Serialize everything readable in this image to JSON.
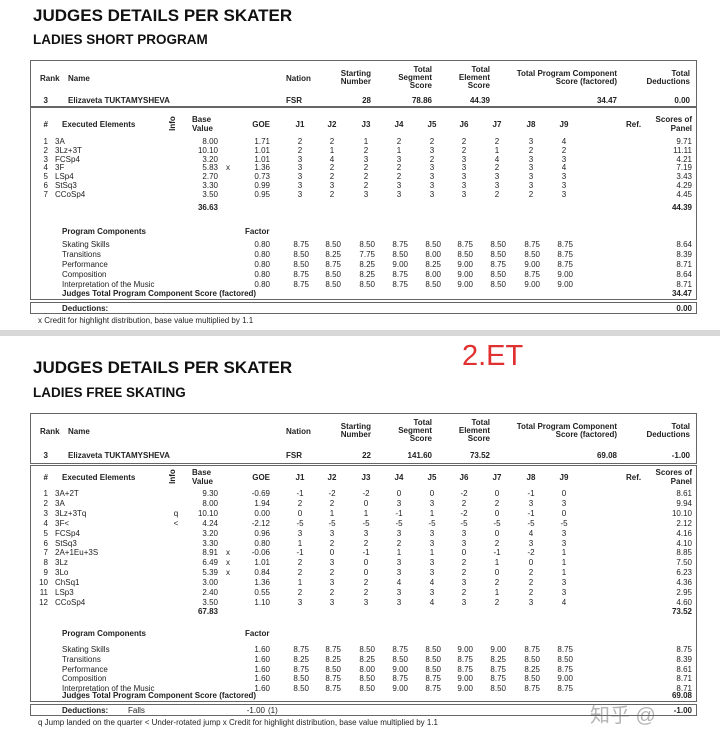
{
  "sheets": [
    {
      "title": "JUDGES DETAILS PER SKATER",
      "subtitle": "LADIES SHORT PROGRAM",
      "badge": "",
      "header": {
        "rank": "Rank",
        "name": "Name",
        "nation": "Nation",
        "start1": "Starting",
        "start2": "Number",
        "tss1": "Total",
        "tss2": "Segment",
        "tss3": "Score",
        "tes1": "Total",
        "tes2": "Element",
        "tes3": "Score",
        "pcs1": "Total Program Component",
        "pcs2": "Score (factored)",
        "ded1": "Total",
        "ded2": "Deductions"
      },
      "skater": {
        "rank": "3",
        "name": "Elizaveta TUKTAMYSHEVA",
        "nation": "FSR",
        "start": "28",
        "tss": "78.86",
        "tes": "44.39",
        "pcs": "34.47",
        "ded": "0.00"
      },
      "el_header": {
        "num": "#",
        "name": "Executed Elements",
        "info": "Info",
        "base1": "Base",
        "base2": "Value",
        "goe": "GOE",
        "judges": [
          "J1",
          "J2",
          "J3",
          "J4",
          "J5",
          "J6",
          "J7",
          "J8",
          "J9"
        ],
        "ref": "Ref.",
        "panel1": "Scores of",
        "panel2": "Panel"
      },
      "elements": [
        {
          "n": "1",
          "name": "3A",
          "info": "",
          "base": "8.00",
          "x": "",
          "goe": "1.71",
          "j": [
            "2",
            "2",
            "1",
            "2",
            "2",
            "2",
            "2",
            "3",
            "4"
          ],
          "panel": "9.71"
        },
        {
          "n": "2",
          "name": "3Lz+3T",
          "info": "",
          "base": "10.10",
          "x": "",
          "goe": "1.01",
          "j": [
            "2",
            "1",
            "2",
            "1",
            "3",
            "2",
            "1",
            "2",
            "2"
          ],
          "panel": "11.11"
        },
        {
          "n": "3",
          "name": "FCSp4",
          "info": "",
          "base": "3.20",
          "x": "",
          "goe": "1.01",
          "j": [
            "3",
            "4",
            "3",
            "3",
            "2",
            "3",
            "4",
            "3",
            "3"
          ],
          "panel": "4.21"
        },
        {
          "n": "4",
          "name": "3F",
          "info": "",
          "base": "5.83",
          "x": "x",
          "goe": "1.36",
          "j": [
            "3",
            "2",
            "2",
            "2",
            "3",
            "3",
            "2",
            "3",
            "4"
          ],
          "panel": "7.19"
        },
        {
          "n": "5",
          "name": "LSp4",
          "info": "",
          "base": "2.70",
          "x": "",
          "goe": "0.73",
          "j": [
            "3",
            "2",
            "2",
            "2",
            "3",
            "3",
            "3",
            "3",
            "3"
          ],
          "panel": "3.43"
        },
        {
          "n": "6",
          "name": "StSq3",
          "info": "",
          "base": "3.30",
          "x": "",
          "goe": "0.99",
          "j": [
            "3",
            "3",
            "2",
            "3",
            "3",
            "3",
            "3",
            "3",
            "3"
          ],
          "panel": "4.29"
        },
        {
          "n": "7",
          "name": "CCoSp4",
          "info": "",
          "base": "3.50",
          "x": "",
          "goe": "0.95",
          "j": [
            "3",
            "2",
            "3",
            "3",
            "3",
            "3",
            "2",
            "2",
            "3"
          ],
          "panel": "4.45"
        }
      ],
      "base_total": "36.63",
      "panel_total": "44.39",
      "pc_header": "Program Components",
      "factor_label": "Factor",
      "components": [
        {
          "name": "Skating Skills",
          "factor": "0.80",
          "j": [
            "8.75",
            "8.50",
            "8.50",
            "8.75",
            "8.50",
            "8.75",
            "8.50",
            "8.75",
            "8.75"
          ],
          "panel": "8.64"
        },
        {
          "name": "Transitions",
          "factor": "0.80",
          "j": [
            "8.50",
            "8.25",
            "7.75",
            "8.50",
            "8.00",
            "8.50",
            "8.50",
            "8.50",
            "8.75"
          ],
          "panel": "8.39"
        },
        {
          "name": "Performance",
          "factor": "0.80",
          "j": [
            "8.50",
            "8.75",
            "8.25",
            "9.00",
            "8.25",
            "9.00",
            "8.75",
            "9.00",
            "8.75"
          ],
          "panel": "8.71"
        },
        {
          "name": "Composition",
          "factor": "0.80",
          "j": [
            "8.75",
            "8.50",
            "8.25",
            "8.75",
            "8.00",
            "9.00",
            "8.50",
            "8.75",
            "9.00"
          ],
          "panel": "8.64"
        },
        {
          "name": "Interpretation of the Music",
          "factor": "0.80",
          "j": [
            "8.75",
            "8.50",
            "8.50",
            "8.75",
            "8.50",
            "9.00",
            "8.50",
            "9.00",
            "9.00"
          ],
          "panel": "8.71"
        }
      ],
      "pcs_total_label": "Judges Total Program Component Score (factored)",
      "pcs_total": "34.47",
      "deductions_label": "Deductions:",
      "deductions_detail": "",
      "deductions_value": "",
      "deductions_count": "",
      "deductions_total": "0.00",
      "footnote": "x Credit for highlight distribution, base value multiplied by 1.1"
    },
    {
      "title": "JUDGES DETAILS PER SKATER",
      "subtitle": "LADIES FREE SKATING",
      "badge": "2.ET",
      "header": {
        "rank": "Rank",
        "name": "Name",
        "nation": "Nation",
        "start1": "Starting",
        "start2": "Number",
        "tss1": "Total",
        "tss2": "Segment",
        "tss3": "Score",
        "tes1": "Total",
        "tes2": "Element",
        "tes3": "Score",
        "pcs1": "Total Program Component",
        "pcs2": "Score (factored)",
        "ded1": "Total",
        "ded2": "Deductions"
      },
      "skater": {
        "rank": "3",
        "name": "Elizaveta TUKTAMYSHEVA",
        "nation": "FSR",
        "start": "22",
        "tss": "141.60",
        "tes": "73.52",
        "pcs": "69.08",
        "ded": "-1.00"
      },
      "el_header": {
        "num": "#",
        "name": "Executed Elements",
        "info": "Info",
        "base1": "Base",
        "base2": "Value",
        "goe": "GOE",
        "judges": [
          "J1",
          "J2",
          "J3",
          "J4",
          "J5",
          "J6",
          "J7",
          "J8",
          "J9"
        ],
        "ref": "Ref.",
        "panel1": "Scores of",
        "panel2": "Panel"
      },
      "elements": [
        {
          "n": "1",
          "name": "3A+2T",
          "info": "",
          "base": "9.30",
          "x": "",
          "goe": "-0.69",
          "j": [
            "-1",
            "-2",
            "-2",
            "0",
            "0",
            "-2",
            "0",
            "-1",
            "0"
          ],
          "panel": "8.61"
        },
        {
          "n": "2",
          "name": "3A",
          "info": "",
          "base": "8.00",
          "x": "",
          "goe": "1.94",
          "j": [
            "2",
            "2",
            "0",
            "3",
            "3",
            "2",
            "2",
            "3",
            "3"
          ],
          "panel": "9.94"
        },
        {
          "n": "3",
          "name": "3Lz+3Tq",
          "info": "q",
          "base": "10.10",
          "x": "",
          "goe": "0.00",
          "j": [
            "0",
            "1",
            "1",
            "-1",
            "1",
            "-2",
            "0",
            "-1",
            "0"
          ],
          "panel": "10.10"
        },
        {
          "n": "4",
          "name": "3F<",
          "info": "<",
          "base": "4.24",
          "x": "",
          "goe": "-2.12",
          "j": [
            "-5",
            "-5",
            "-5",
            "-5",
            "-5",
            "-5",
            "-5",
            "-5",
            "-5"
          ],
          "panel": "2.12"
        },
        {
          "n": "5",
          "name": "FCSp4",
          "info": "",
          "base": "3.20",
          "x": "",
          "goe": "0.96",
          "j": [
            "3",
            "3",
            "3",
            "3",
            "3",
            "3",
            "0",
            "4",
            "3"
          ],
          "panel": "4.16"
        },
        {
          "n": "6",
          "name": "StSq3",
          "info": "",
          "base": "3.30",
          "x": "",
          "goe": "0.80",
          "j": [
            "1",
            "2",
            "2",
            "2",
            "3",
            "3",
            "2",
            "3",
            "3"
          ],
          "panel": "4.10"
        },
        {
          "n": "7",
          "name": "2A+1Eu+3S",
          "info": "",
          "base": "8.91",
          "x": "x",
          "goe": "-0.06",
          "j": [
            "-1",
            "0",
            "-1",
            "1",
            "1",
            "0",
            "-1",
            "-2",
            "1"
          ],
          "panel": "8.85"
        },
        {
          "n": "8",
          "name": "3Lz",
          "info": "",
          "base": "6.49",
          "x": "x",
          "goe": "1.01",
          "j": [
            "2",
            "3",
            "0",
            "3",
            "3",
            "2",
            "1",
            "0",
            "1"
          ],
          "panel": "7.50"
        },
        {
          "n": "9",
          "name": "3Lo",
          "info": "",
          "base": "5.39",
          "x": "x",
          "goe": "0.84",
          "j": [
            "2",
            "2",
            "0",
            "3",
            "3",
            "2",
            "0",
            "2",
            "1"
          ],
          "panel": "6.23"
        },
        {
          "n": "10",
          "name": "ChSq1",
          "info": "",
          "base": "3.00",
          "x": "",
          "goe": "1.36",
          "j": [
            "1",
            "3",
            "2",
            "4",
            "4",
            "3",
            "2",
            "2",
            "3"
          ],
          "panel": "4.36"
        },
        {
          "n": "11",
          "name": "LSp3",
          "info": "",
          "base": "2.40",
          "x": "",
          "goe": "0.55",
          "j": [
            "2",
            "2",
            "2",
            "3",
            "3",
            "2",
            "1",
            "2",
            "3"
          ],
          "panel": "2.95"
        },
        {
          "n": "12",
          "name": "CCoSp4",
          "info": "",
          "base": "3.50",
          "x": "",
          "goe": "1.10",
          "j": [
            "3",
            "3",
            "3",
            "3",
            "4",
            "3",
            "2",
            "3",
            "4"
          ],
          "panel": "4.60"
        }
      ],
      "base_total": "67.83",
      "panel_total": "73.52",
      "pc_header": "Program Components",
      "factor_label": "Factor",
      "components": [
        {
          "name": "Skating Skills",
          "factor": "1.60",
          "j": [
            "8.75",
            "8.75",
            "8.50",
            "8.75",
            "8.50",
            "9.00",
            "9.00",
            "8.75",
            "8.75"
          ],
          "panel": "8.75"
        },
        {
          "name": "Transitions",
          "factor": "1.60",
          "j": [
            "8.25",
            "8.25",
            "8.25",
            "8.50",
            "8.50",
            "8.75",
            "8.25",
            "8.50",
            "8.50"
          ],
          "panel": "8.39"
        },
        {
          "name": "Performance",
          "factor": "1.60",
          "j": [
            "8.75",
            "8.50",
            "8.00",
            "9.00",
            "8.50",
            "8.75",
            "8.75",
            "8.25",
            "8.75"
          ],
          "panel": "8.61"
        },
        {
          "name": "Composition",
          "factor": "1.60",
          "j": [
            "8.50",
            "8.75",
            "8.50",
            "8.75",
            "8.75",
            "9.00",
            "8.75",
            "8.50",
            "9.00"
          ],
          "panel": "8.71"
        },
        {
          "name": "Interpretation of the Music",
          "factor": "1.60",
          "j": [
            "8.50",
            "8.75",
            "8.50",
            "9.00",
            "8.75",
            "9.00",
            "8.50",
            "8.75",
            "8.75"
          ],
          "panel": "8.71"
        }
      ],
      "pcs_total_label": "Judges Total Program Component Score (factored)",
      "pcs_total": "69.08",
      "deductions_label": "Deductions:",
      "deductions_detail": "Falls",
      "deductions_value": "-1.00",
      "deductions_count": "(1)",
      "deductions_total": "-1.00",
      "footnote": "q Jump landed on the quarter   < Under-rotated jump   x Credit for highlight distribution, base value multiplied by 1.1"
    }
  ],
  "watermark": "知乎 @"
}
